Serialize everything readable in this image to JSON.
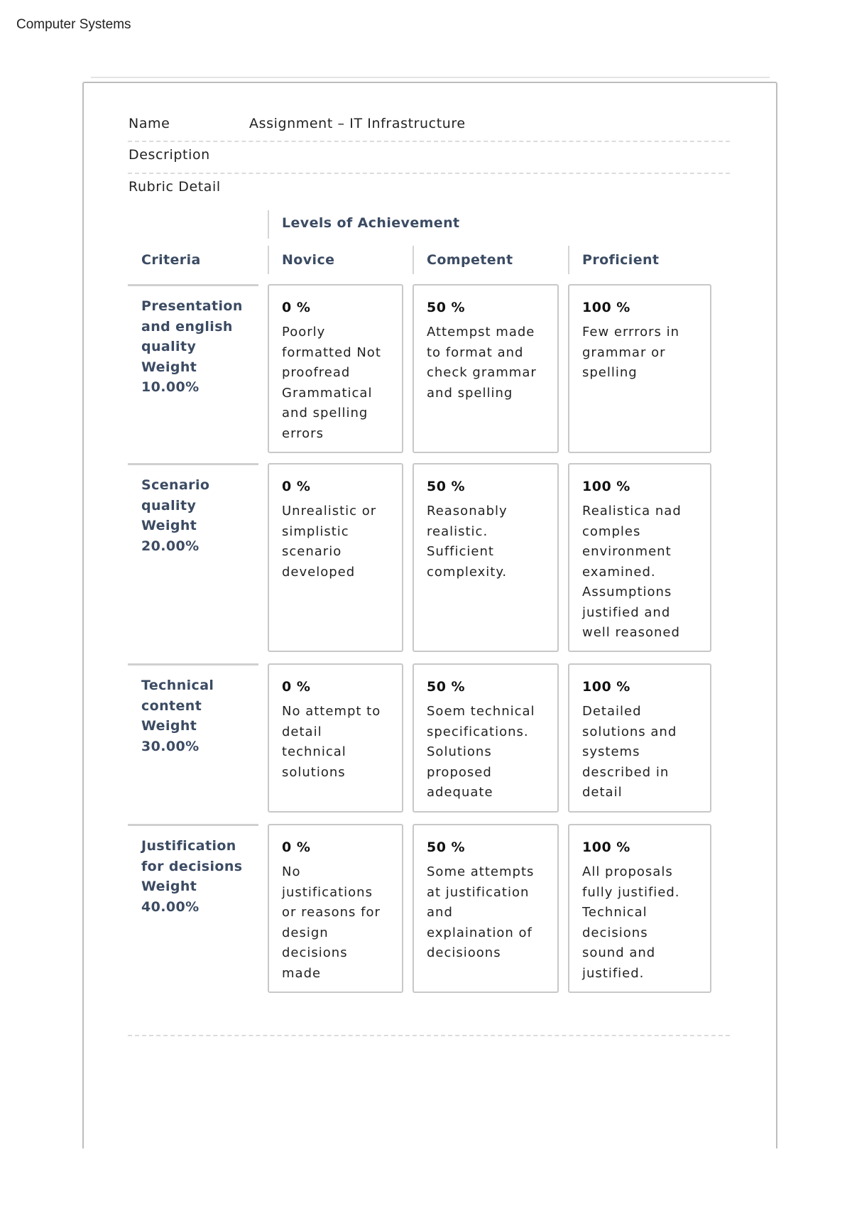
{
  "document_title": "Computer Systems",
  "fields": {
    "name_label": "Name",
    "name_value": "Assignment – IT Infrastructure",
    "description_label": "Description",
    "rubric_label": "Rubric Detail"
  },
  "rubric": {
    "levels_header": "Levels of Achievement",
    "criteria_header": "Criteria",
    "levels": [
      "Novice",
      "Competent",
      "Proficient"
    ],
    "rows": [
      {
        "criterion": "Presentation\nand english\nquality",
        "weight_label": "Weight",
        "weight": "10.00%",
        "cells": [
          {
            "pct": "0 %",
            "desc": "Poorly\nformatted Not\nproofread\nGrammatical\nand spelling\nerrors"
          },
          {
            "pct": "50 %",
            "desc": "Attempst made\nto format and\ncheck grammar\nand spelling"
          },
          {
            "pct": "100 %",
            "desc": "Few errrors in\ngrammar or\nspelling"
          }
        ]
      },
      {
        "criterion": "Scenario\nquality",
        "weight_label": "Weight",
        "weight": "20.00%",
        "cells": [
          {
            "pct": "0 %",
            "desc": "Unrealistic or\nsimplistic\nscenario\ndeveloped"
          },
          {
            "pct": "50 %",
            "desc": "Reasonably\nrealistic.\nSufficient\ncomplexity."
          },
          {
            "pct": "100 %",
            "desc": "Realistica nad\ncomples\nenvironment\nexamined.\nAssumptions\njustified and\nwell reasoned"
          }
        ]
      },
      {
        "criterion": "Technical\ncontent",
        "weight_label": "Weight",
        "weight": "30.00%",
        "cells": [
          {
            "pct": "0 %",
            "desc": "No attempt to\ndetail\ntechnical\nsolutions"
          },
          {
            "pct": "50 %",
            "desc": "Soem technical\nspecifications.\nSolutions\nproposed\nadequate"
          },
          {
            "pct": "100 %",
            "desc": "Detailed\nsolutions and\nsystems\ndescribed in\ndetail"
          }
        ]
      },
      {
        "criterion": "Justification\nfor decisions",
        "weight_label": "Weight",
        "weight": "40.00%",
        "cells": [
          {
            "pct": "0 %",
            "desc": "No\njustifications\nor reasons for\ndesign\ndecisions\nmade"
          },
          {
            "pct": "50 %",
            "desc": "Some attempts\nat justification\nand\nexplaination of\ndecisioons"
          },
          {
            "pct": "100 %",
            "desc": "All proposals\nfully justified.\nTechnical\ndecisions\nsound and\njustified."
          }
        ]
      }
    ]
  }
}
